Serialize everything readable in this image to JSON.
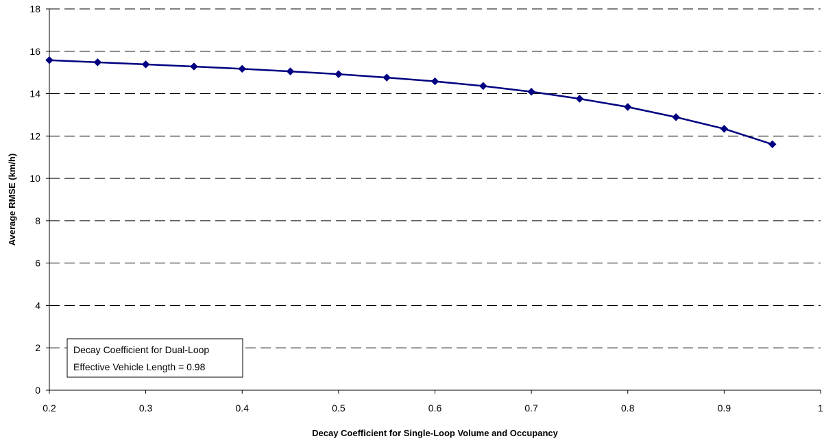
{
  "chart_data": {
    "type": "line",
    "title": "",
    "xlabel": "Decay Coefficient for Single-Loop Volume and Occupancy",
    "ylabel": "Average RMSE (km/h)",
    "xlim": [
      0.2,
      1
    ],
    "ylim": [
      0,
      18
    ],
    "x_ticks": [
      "0.2",
      "0.3",
      "0.4",
      "0.5",
      "0.6",
      "0.7",
      "0.8",
      "0.9",
      "1"
    ],
    "y_ticks": [
      "0",
      "2",
      "4",
      "6",
      "8",
      "10",
      "12",
      "14",
      "16",
      "18"
    ],
    "grid": "horizontal dashed",
    "legend": "none",
    "series": [
      {
        "color": "#000080",
        "marker": "diamond",
        "x": [
          0.2,
          0.25,
          0.3,
          0.35,
          0.4,
          0.45,
          0.5,
          0.55,
          0.6,
          0.65,
          0.7,
          0.75,
          0.8,
          0.85,
          0.9,
          0.95
        ],
        "y": [
          15.58,
          15.48,
          15.38,
          15.28,
          15.17,
          15.05,
          14.92,
          14.76,
          14.58,
          14.36,
          14.09,
          13.76,
          13.37,
          12.89,
          12.34,
          11.61
        ]
      }
    ],
    "annotation": {
      "lines": [
        "Decay Coefficient for Dual-Loop",
        "Effective Vehicle Length = 0.98"
      ]
    }
  }
}
